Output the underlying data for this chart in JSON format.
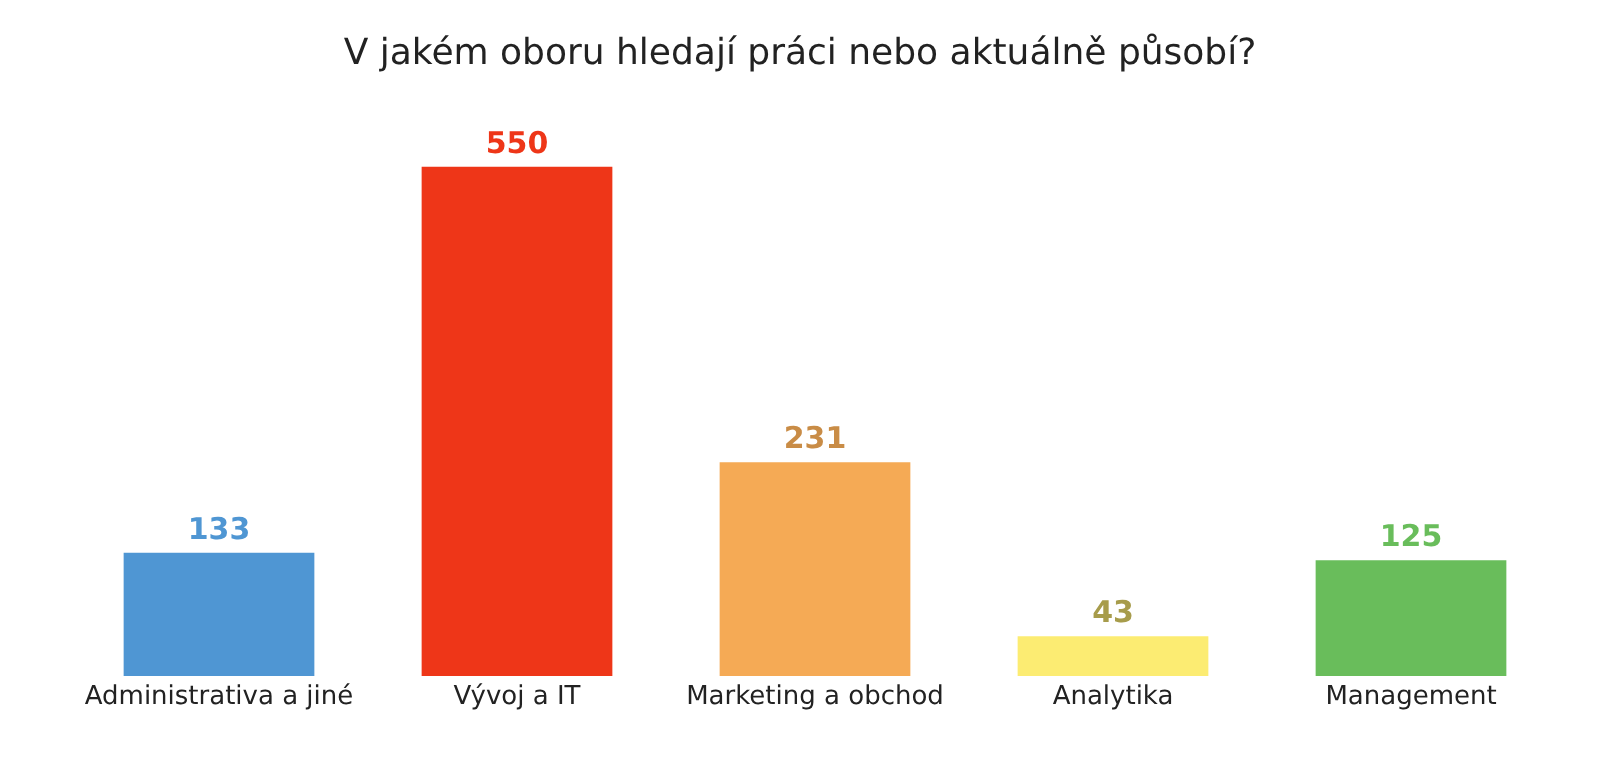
{
  "chart_data": {
    "type": "bar",
    "title": "V jakém oboru hledají práci nebo aktuálně působí?",
    "categories": [
      "Administrativa a jiné",
      "Vývoj a IT",
      "Marketing a obchod",
      "Analytika",
      "Management"
    ],
    "values": [
      133,
      550,
      231,
      43,
      125
    ],
    "colors": [
      "#4f96d3",
      "#ee3618",
      "#f5aa55",
      "#fcec72",
      "#69bd5b"
    ],
    "data_labels": true,
    "grid": false,
    "legend": false
  }
}
